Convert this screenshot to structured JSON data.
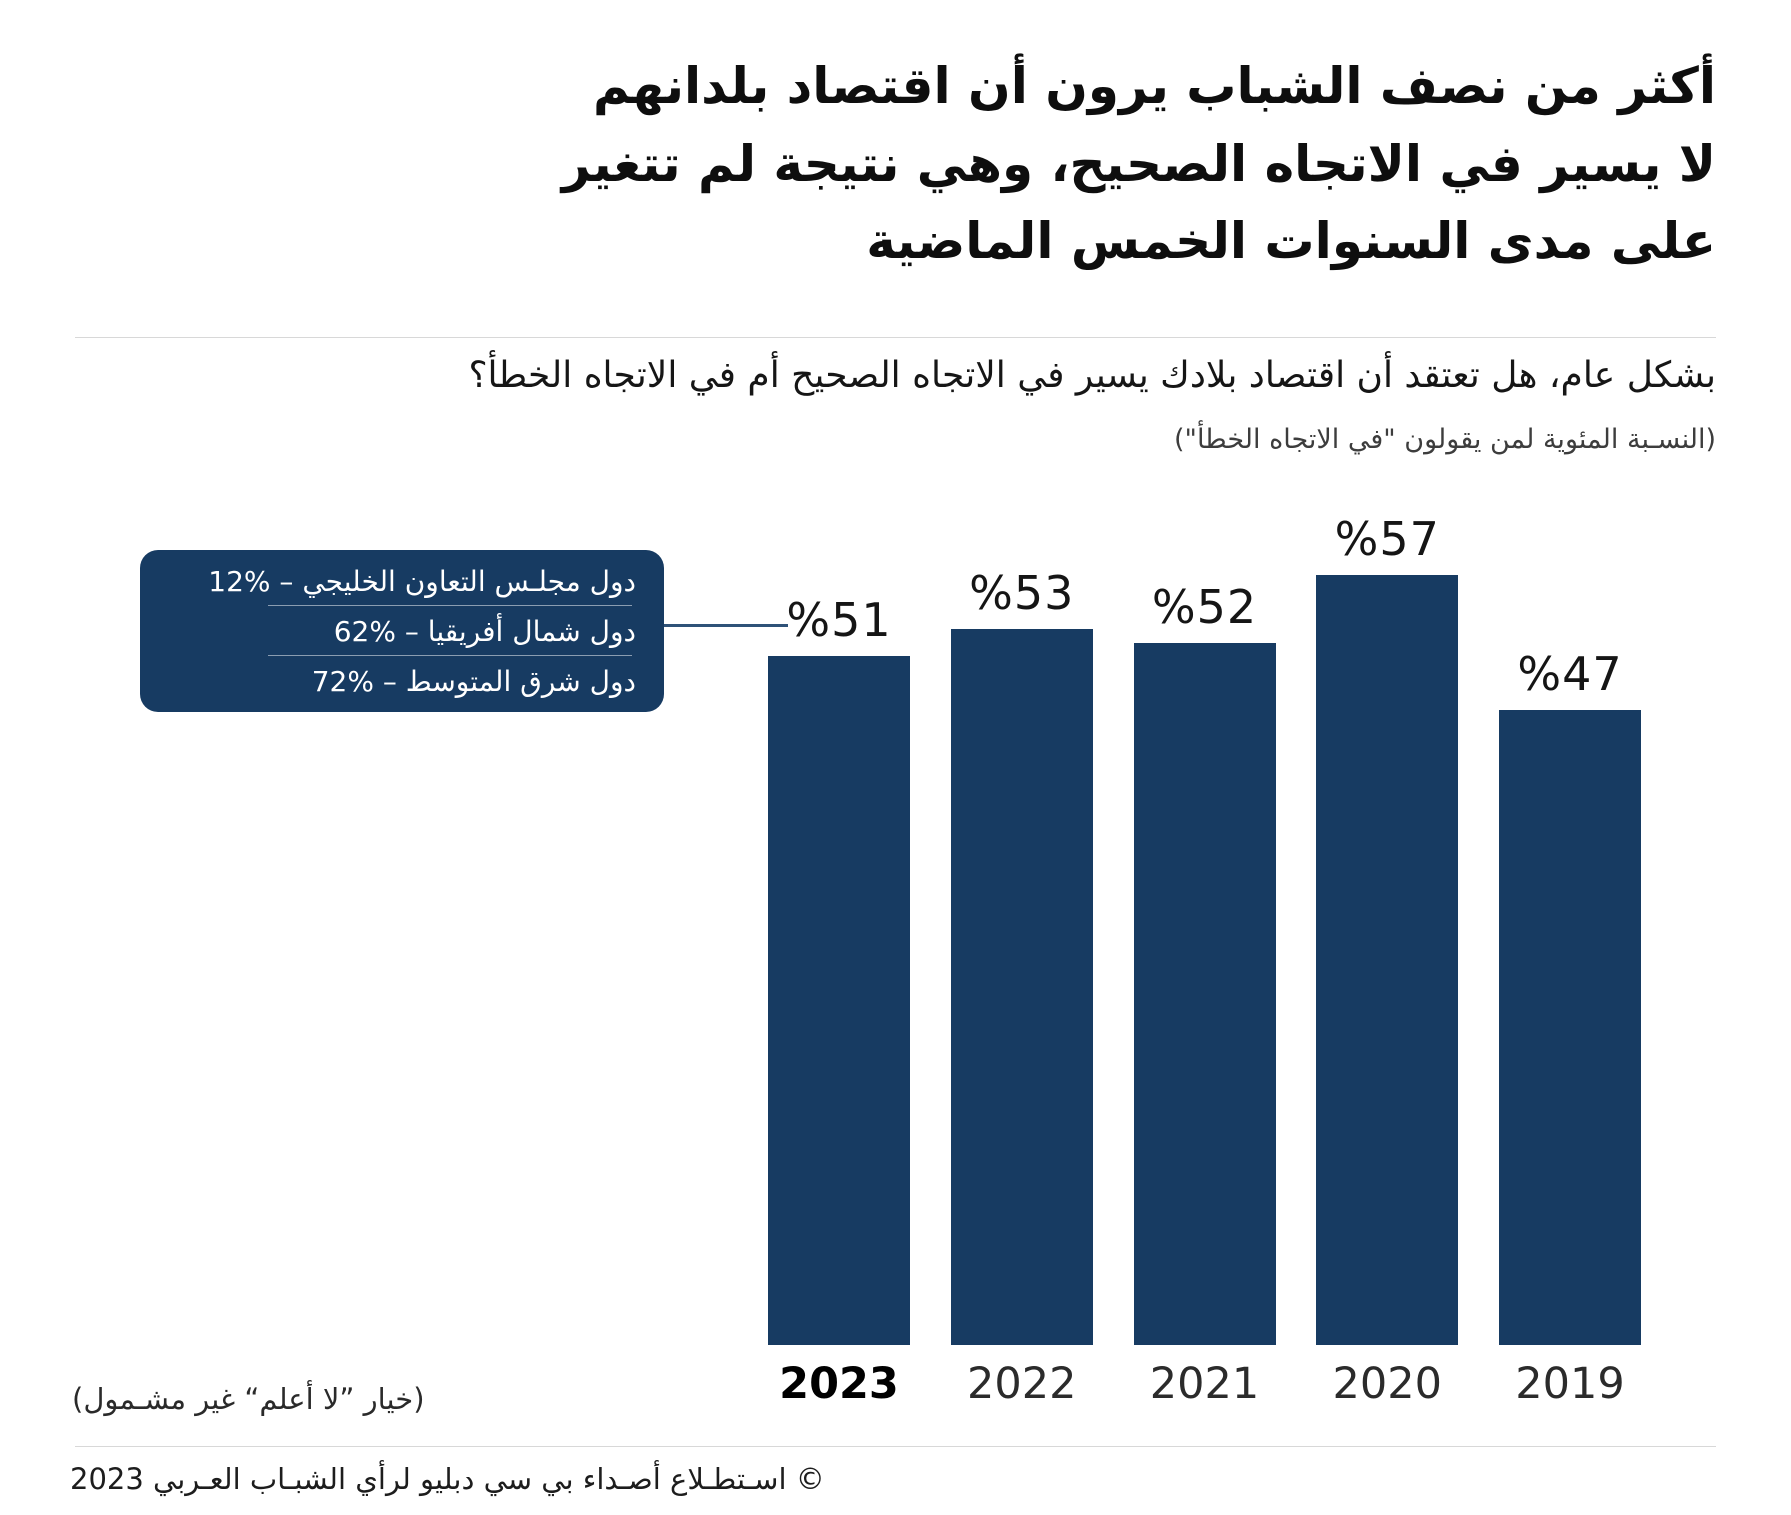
{
  "page": {
    "title": "أكثر من نصف الشباب يرون أن اقتصاد بلدانهم لا يسير في الاتجاه الصحيح، وهي نتيجة لم تتغير على مدى السنوات الخمس الماضية",
    "subtitle": "بشكل عام، هل تعتقد أن اقتصاد بلادك يسير في الاتجاه الصحيح أم في الاتجاه الخطأ؟",
    "measure_note": "(النسـبة المئوية لمن يقولون \"في الاتجاه الخطأ\")",
    "exclusion_note": "(خيار ”لا أعلم“ غير مشـمول)",
    "source": "© اسـتطـلاع أصـداء بي سي دبليو لرأي الشبـاب العـربي 2023"
  },
  "callout": {
    "items": [
      "دول مجلـس التعاون الخليجي – %12",
      "دول شمال أفريقيا – %62",
      "دول شرق المتوسط – %72"
    ]
  },
  "colors": {
    "bar_navy": "#173b62",
    "divider_gray": "#d8d8d8"
  },
  "chart_data": {
    "type": "bar",
    "categories": [
      "2023",
      "2022",
      "2021",
      "2020",
      "2019"
    ],
    "values": [
      51,
      53,
      52,
      57,
      47
    ],
    "value_labels": [
      "%51",
      "%53",
      "%52",
      "%57",
      "%47"
    ],
    "highlighted_category": "2023",
    "ylim": [
      0,
      60
    ],
    "grid": false,
    "legend": false,
    "bar_color": "#173b62",
    "annotation_target_category": "2023",
    "region_breakdown": [
      {
        "region": "دول مجلـس التعاون الخليجي",
        "value": 12
      },
      {
        "region": "دول شمال أفريقيا",
        "value": 62
      },
      {
        "region": "دول شرق المتوسط",
        "value": 72
      }
    ]
  }
}
